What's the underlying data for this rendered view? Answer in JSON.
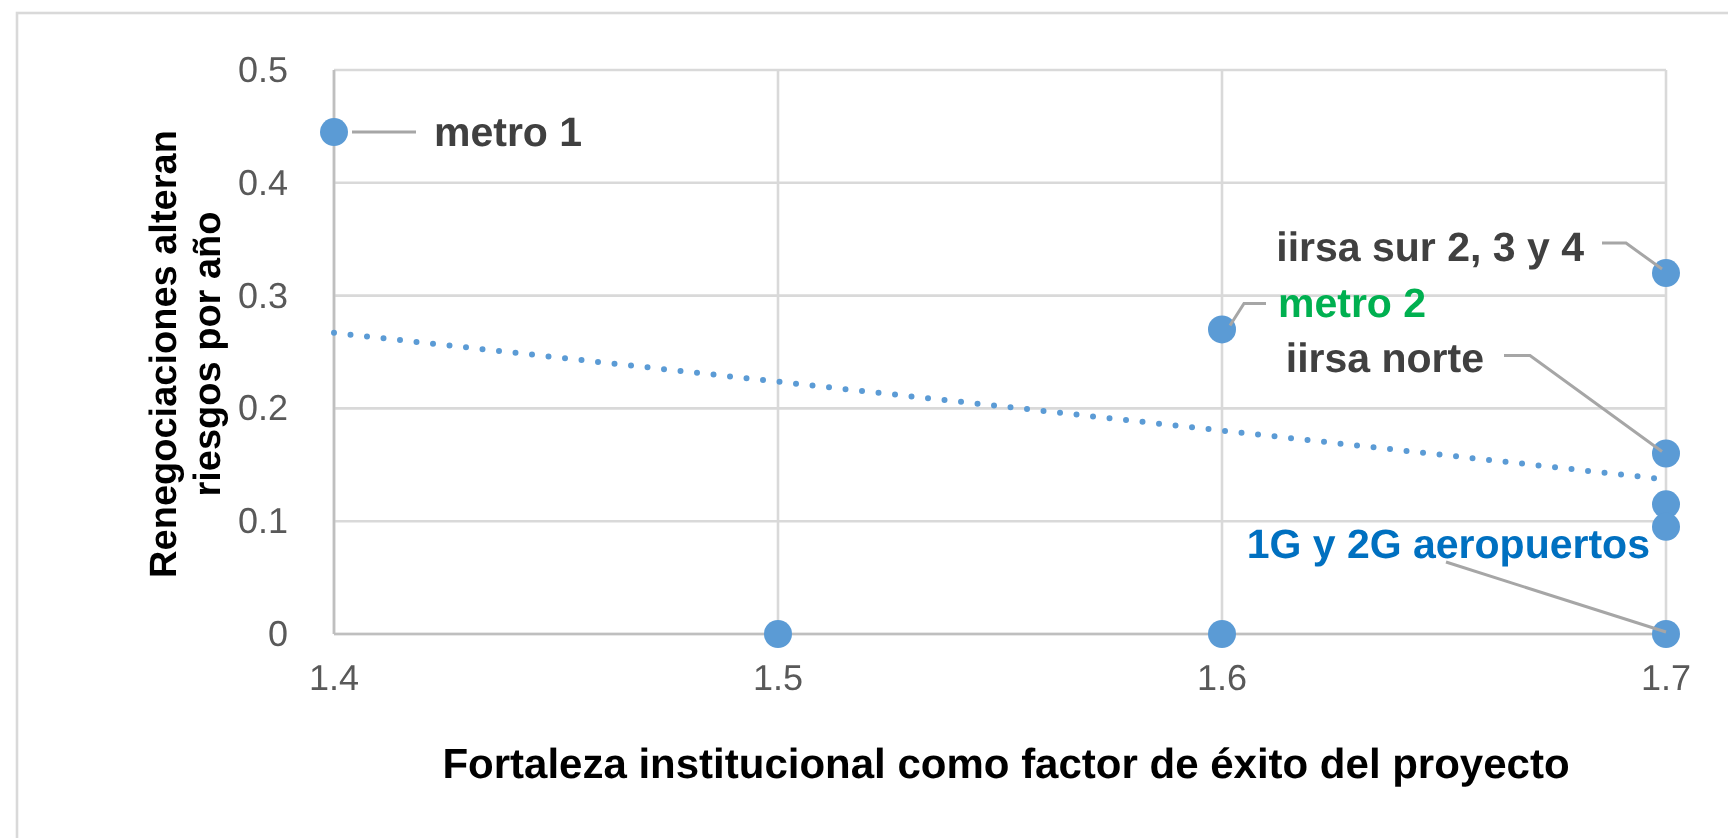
{
  "chart_data": {
    "type": "scatter",
    "xlabel": "Fortaleza institucional como factor de éxito del proyecto",
    "ylabel": "Renegociaciones alteran riesgos por año",
    "xlim": [
      1.4,
      1.7
    ],
    "xticks": [
      1.4,
      1.5,
      1.6,
      1.7
    ],
    "ylim": [
      0,
      0.5
    ],
    "yticks": [
      0,
      0.1,
      0.2,
      0.3,
      0.4,
      0.5
    ],
    "grid": true,
    "series": [
      {
        "color": "#5b9bd5",
        "marker": "circle",
        "x": [
          1.4,
          1.5,
          1.6,
          1.6,
          1.7,
          1.7,
          1.7,
          1.7,
          1.7
        ],
        "values": [
          0.445,
          0,
          0,
          0.27,
          0.32,
          0.16,
          0.115,
          0.095,
          0
        ]
      },
      {
        "type": "line",
        "color": "#5b9bd5",
        "line_style": "dotted",
        "x": [
          1.4,
          1.7
        ],
        "values": [
          0.267,
          0.137
        ]
      }
    ],
    "annotations": [
      {
        "text": "metro 1",
        "x": 1.4,
        "y": 0.445
      },
      {
        "text": "metro 2",
        "x": 1.6,
        "y": 0.27
      },
      {
        "text": "iirsa sur 2, 3 y 4",
        "x": 1.7,
        "y": 0.32
      },
      {
        "text": "iirsa norte",
        "x": 1.7,
        "y": 0.16
      },
      {
        "text": "1G y 2G aeropuertos",
        "x": 1.7,
        "y": 0
      }
    ]
  }
}
